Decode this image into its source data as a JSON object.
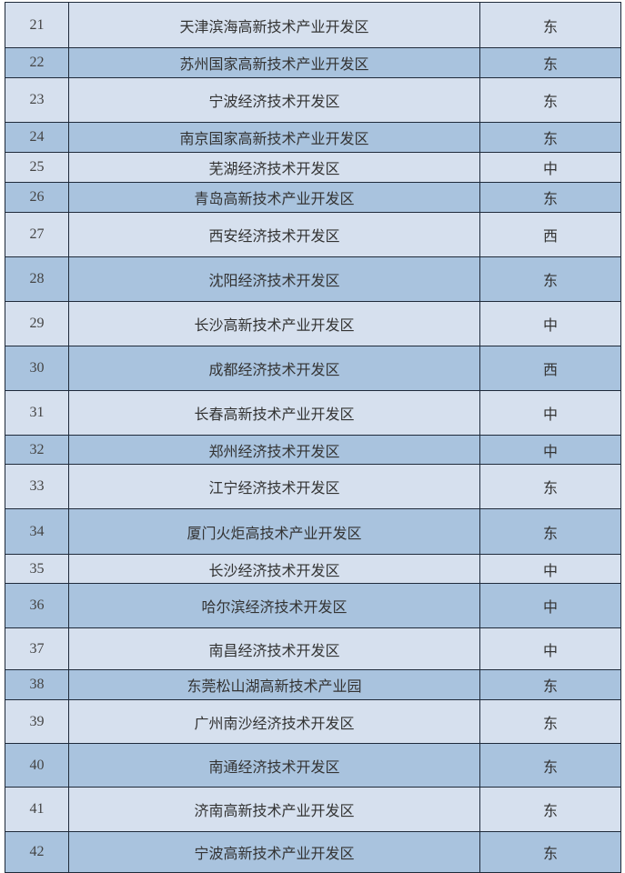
{
  "colors": {
    "light_row": "#d6e0ee",
    "dark_row": "#a9c3de",
    "border": "#1f2a3a"
  },
  "rows": [
    {
      "no": "21",
      "name": "天津滨海高新技术产业开发区",
      "region": "东"
    },
    {
      "no": "22",
      "name": "苏州国家高新技术产业开发区",
      "region": "东"
    },
    {
      "no": "23",
      "name": "宁波经济技术开发区",
      "region": "东"
    },
    {
      "no": "24",
      "name": "南京国家高新技术产业开发区",
      "region": "东"
    },
    {
      "no": "25",
      "name": "芜湖经济技术开发区",
      "region": "中"
    },
    {
      "no": "26",
      "name": "青岛高新技术产业开发区",
      "region": "东"
    },
    {
      "no": "27",
      "name": "西安经济技术开发区",
      "region": "西"
    },
    {
      "no": "28",
      "name": "沈阳经济技术开发区",
      "region": "东"
    },
    {
      "no": "29",
      "name": "长沙高新技术产业开发区",
      "region": "中"
    },
    {
      "no": "30",
      "name": "成都经济技术开发区",
      "region": "西"
    },
    {
      "no": "31",
      "name": "长春高新技术产业开发区",
      "region": "中"
    },
    {
      "no": "32",
      "name": "郑州经济技术开发区",
      "region": "中"
    },
    {
      "no": "33",
      "name": "江宁经济技术开发区",
      "region": "东"
    },
    {
      "no": "34",
      "name": "厦门火炬高技术产业开发区",
      "region": "东"
    },
    {
      "no": "35",
      "name": "长沙经济技术开发区",
      "region": "中"
    },
    {
      "no": "36",
      "name": "哈尔滨经济技术开发区",
      "region": "中"
    },
    {
      "no": "37",
      "name": "南昌经济技术开发区",
      "region": "中"
    },
    {
      "no": "38",
      "name": "东莞松山湖高新技术产业园",
      "region": "东"
    },
    {
      "no": "39",
      "name": "广州南沙经济技术开发区",
      "region": "东"
    },
    {
      "no": "40",
      "name": "南通经济技术开发区",
      "region": "东"
    },
    {
      "no": "41",
      "name": "济南高新技术产业开发区",
      "region": "东"
    },
    {
      "no": "42",
      "name": "宁波高新技术产业开发区",
      "region": "东"
    }
  ]
}
